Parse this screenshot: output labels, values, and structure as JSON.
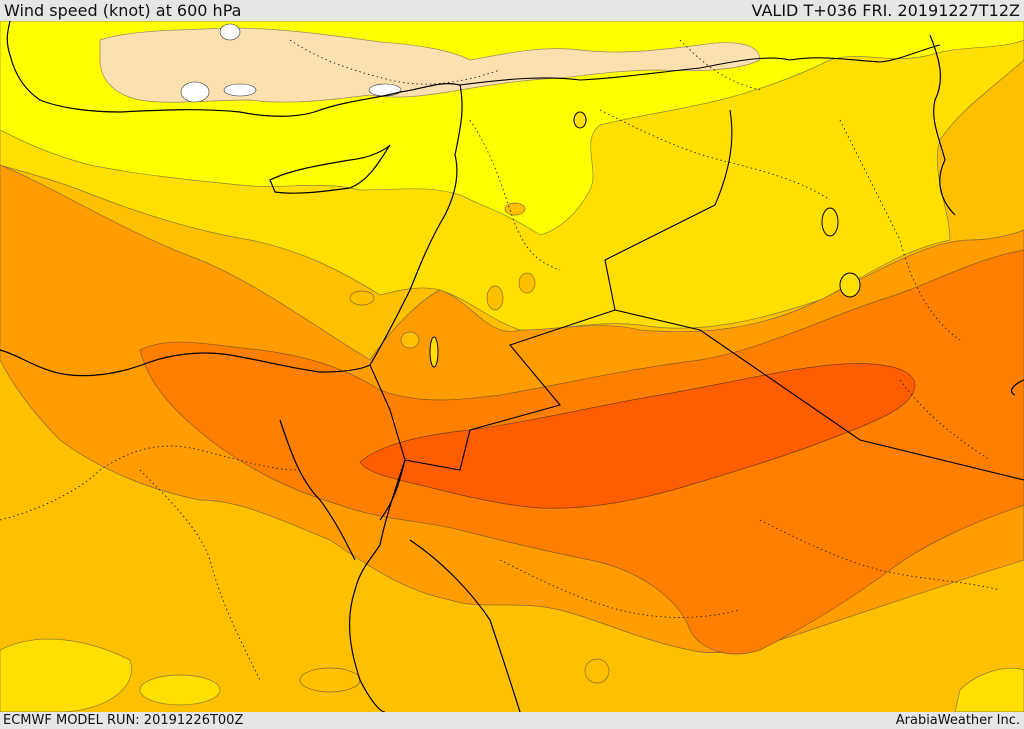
{
  "header": {
    "title": "Wind speed (knot) at 600 hPa",
    "valid": "VALID T+036 FRI. 20191227T12Z"
  },
  "footer": {
    "model_run": "ECMWF MODEL RUN: 20191226T00Z",
    "credit": "ArabiaWeather Inc."
  },
  "palette": {
    "band_1": "#fde0b0",
    "band_2": "#ffff00",
    "band_3": "#ffdf00",
    "band_4": "#ffc000",
    "band_5": "#ff9c00",
    "band_6": "#ff7f00",
    "band_7": "#ff5e00",
    "land": "#000000"
  }
}
